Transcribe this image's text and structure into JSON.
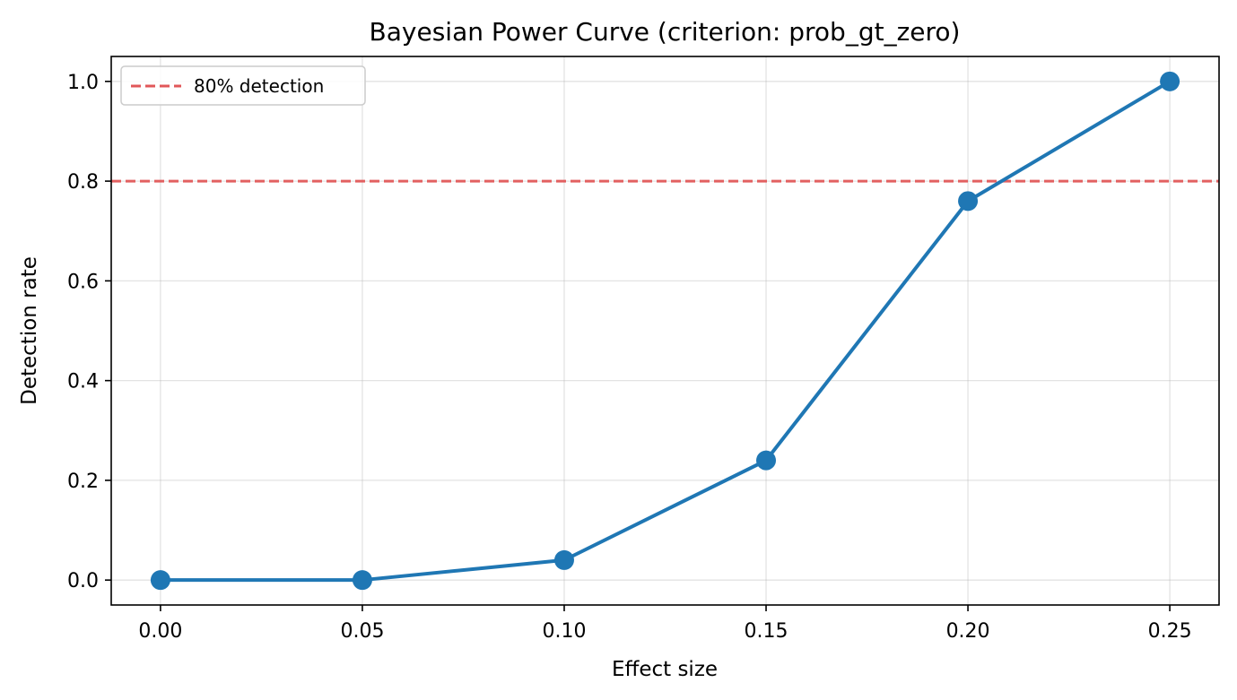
{
  "chart_data": {
    "type": "line",
    "title": "Bayesian Power Curve (criterion: prob_gt_zero)",
    "xlabel": "Effect size",
    "ylabel": "Detection rate",
    "x": [
      0.0,
      0.05,
      0.1,
      0.15,
      0.2,
      0.25
    ],
    "x_tick_labels": [
      "0.00",
      "0.05",
      "0.10",
      "0.15",
      "0.20",
      "0.25"
    ],
    "y_ticks": [
      0.0,
      0.2,
      0.4,
      0.6,
      0.8,
      1.0
    ],
    "y_tick_labels": [
      "0.0",
      "0.2",
      "0.4",
      "0.6",
      "0.8",
      "1.0"
    ],
    "xlim": [
      -0.0122,
      0.2622
    ],
    "ylim": [
      -0.05,
      1.05
    ],
    "series": [
      {
        "values": [
          0.0,
          0.0,
          0.04,
          0.24,
          0.76,
          1.0
        ],
        "color": "#1f77b4",
        "marker": "circle"
      }
    ],
    "reference_line": {
      "y": 0.8,
      "label": "80% detection",
      "color": "#e15759",
      "style": "dashed"
    },
    "legend": {
      "location": "top-left",
      "entries": [
        "80% detection"
      ]
    },
    "grid": true
  }
}
